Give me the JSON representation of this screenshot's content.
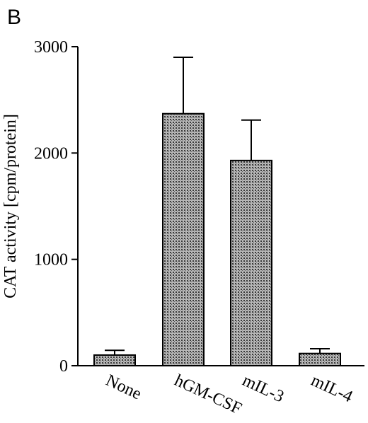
{
  "panel_label": "B",
  "chart_data": {
    "type": "bar",
    "categories": [
      "None",
      "hGM-CSF",
      "mIL-3",
      "mIL-4"
    ],
    "values": [
      100,
      2370,
      1930,
      115
    ],
    "errors": [
      45,
      530,
      380,
      45
    ],
    "title": "",
    "xlabel": "",
    "ylabel": "CAT activity [cpm/protein]",
    "ylim": [
      0,
      3000
    ],
    "yticks": [
      0,
      1000,
      2000,
      3000
    ],
    "grid": false,
    "legend": "none",
    "bar_fill": "#a8a8a8",
    "bar_pattern": "stippled"
  }
}
